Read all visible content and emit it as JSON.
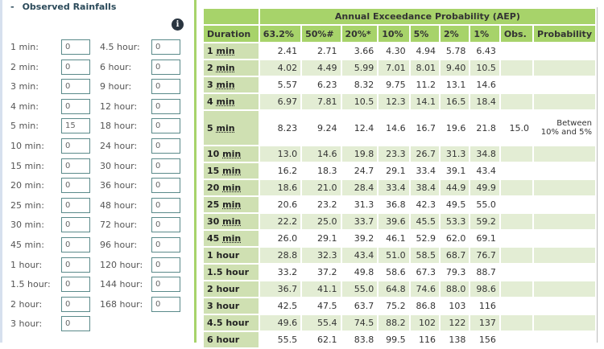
{
  "panel": {
    "collapse_symbol": "-",
    "title": "Observed Rainfalls",
    "info_icon": "i"
  },
  "fields_left": [
    {
      "label": "1 min:",
      "value": "0"
    },
    {
      "label": "2 min:",
      "value": "0"
    },
    {
      "label": "3 min:",
      "value": "0"
    },
    {
      "label": "4 min:",
      "value": "0"
    },
    {
      "label": "5 min:",
      "value": "15"
    },
    {
      "label": "10 min:",
      "value": "0"
    },
    {
      "label": "15 min:",
      "value": "0"
    },
    {
      "label": "20 min:",
      "value": "0"
    },
    {
      "label": "25 min:",
      "value": "0"
    },
    {
      "label": "30 min:",
      "value": "0"
    },
    {
      "label": "45 min:",
      "value": "0"
    },
    {
      "label": "1 hour:",
      "value": "0"
    },
    {
      "label": "1.5 hour:",
      "value": "0"
    },
    {
      "label": "2 hour:",
      "value": "0"
    },
    {
      "label": "3 hour:",
      "value": "0"
    }
  ],
  "fields_right": [
    {
      "label": "4.5 hour:",
      "value": "0"
    },
    {
      "label": "6 hour:",
      "value": "0"
    },
    {
      "label": "9 hour:",
      "value": "0"
    },
    {
      "label": "12 hour:",
      "value": "0"
    },
    {
      "label": "18 hour:",
      "value": "0"
    },
    {
      "label": "24 hour:",
      "value": "0"
    },
    {
      "label": "30 hour:",
      "value": "0"
    },
    {
      "label": "36 hour:",
      "value": "0"
    },
    {
      "label": "48 hour:",
      "value": "0"
    },
    {
      "label": "72 hour:",
      "value": "0"
    },
    {
      "label": "96 hour:",
      "value": "0"
    },
    {
      "label": "120 hour:",
      "value": "0"
    },
    {
      "label": "144 hour:",
      "value": "0"
    },
    {
      "label": "168 hour:",
      "value": "0"
    }
  ],
  "table": {
    "group_header": "Annual Exceedance Probability (AEP)",
    "columns": [
      "Duration",
      "63.2%",
      "50%#",
      "20%*",
      "10%",
      "5%",
      "2%",
      "1%",
      "Obs.",
      "Probability"
    ],
    "rows": [
      {
        "num": "1",
        "unit": "min",
        "values": [
          "2.41",
          "2.71",
          "3.66",
          "4.30",
          "4.94",
          "5.78",
          "6.43"
        ],
        "obs": "",
        "prob": ""
      },
      {
        "num": "2",
        "unit": "min",
        "values": [
          "4.02",
          "4.49",
          "5.99",
          "7.01",
          "8.01",
          "9.40",
          "10.5"
        ],
        "obs": "",
        "prob": ""
      },
      {
        "num": "3",
        "unit": "min",
        "values": [
          "5.57",
          "6.23",
          "8.32",
          "9.75",
          "11.2",
          "13.1",
          "14.6"
        ],
        "obs": "",
        "prob": ""
      },
      {
        "num": "4",
        "unit": "min",
        "values": [
          "6.97",
          "7.81",
          "10.5",
          "12.3",
          "14.1",
          "16.5",
          "18.4"
        ],
        "obs": "",
        "prob": ""
      },
      {
        "num": "5",
        "unit": "min",
        "values": [
          "8.23",
          "9.24",
          "12.4",
          "14.6",
          "16.7",
          "19.6",
          "21.8"
        ],
        "obs": "15.0",
        "prob": "Between 10% and 5%"
      },
      {
        "num": "10",
        "unit": "min",
        "values": [
          "13.0",
          "14.6",
          "19.8",
          "23.3",
          "26.7",
          "31.3",
          "34.8"
        ],
        "obs": "",
        "prob": ""
      },
      {
        "num": "15",
        "unit": "min",
        "values": [
          "16.2",
          "18.3",
          "24.7",
          "29.1",
          "33.4",
          "39.1",
          "43.4"
        ],
        "obs": "",
        "prob": ""
      },
      {
        "num": "20",
        "unit": "min",
        "values": [
          "18.6",
          "21.0",
          "28.4",
          "33.4",
          "38.4",
          "44.9",
          "49.9"
        ],
        "obs": "",
        "prob": ""
      },
      {
        "num": "25",
        "unit": "min",
        "values": [
          "20.6",
          "23.2",
          "31.3",
          "36.8",
          "42.3",
          "49.5",
          "55.0"
        ],
        "obs": "",
        "prob": ""
      },
      {
        "num": "30",
        "unit": "min",
        "values": [
          "22.2",
          "25.0",
          "33.7",
          "39.6",
          "45.5",
          "53.3",
          "59.2"
        ],
        "obs": "",
        "prob": ""
      },
      {
        "num": "45",
        "unit": "min",
        "values": [
          "26.0",
          "29.1",
          "39.2",
          "46.1",
          "52.9",
          "62.0",
          "69.1"
        ],
        "obs": "",
        "prob": ""
      },
      {
        "num": "1",
        "unit": "hour",
        "values": [
          "28.8",
          "32.3",
          "43.4",
          "51.0",
          "58.5",
          "68.7",
          "76.7"
        ],
        "obs": "",
        "prob": ""
      },
      {
        "num": "1.5",
        "unit": "hour",
        "values": [
          "33.2",
          "37.2",
          "49.8",
          "58.6",
          "67.3",
          "79.3",
          "88.7"
        ],
        "obs": "",
        "prob": ""
      },
      {
        "num": "2",
        "unit": "hour",
        "values": [
          "36.7",
          "41.1",
          "55.0",
          "64.8",
          "74.6",
          "88.0",
          "98.6"
        ],
        "obs": "",
        "prob": ""
      },
      {
        "num": "3",
        "unit": "hour",
        "values": [
          "42.5",
          "47.5",
          "63.7",
          "75.2",
          "86.8",
          "103",
          "116"
        ],
        "obs": "",
        "prob": ""
      },
      {
        "num": "4.5",
        "unit": "hour",
        "values": [
          "49.6",
          "55.4",
          "74.5",
          "88.2",
          "102",
          "122",
          "137"
        ],
        "obs": "",
        "prob": ""
      },
      {
        "num": "6",
        "unit": "hour",
        "values": [
          "55.5",
          "62.1",
          "83.8",
          "99.5",
          "116",
          "138",
          "156"
        ],
        "obs": "",
        "prob": ""
      }
    ]
  },
  "colors": {
    "header_green": "#a7d36a",
    "duration_cell": "#cfe0b2",
    "row_stripe": "#e3edd4",
    "divider": "#a7d36a",
    "input_border": "#5a8a8a"
  }
}
